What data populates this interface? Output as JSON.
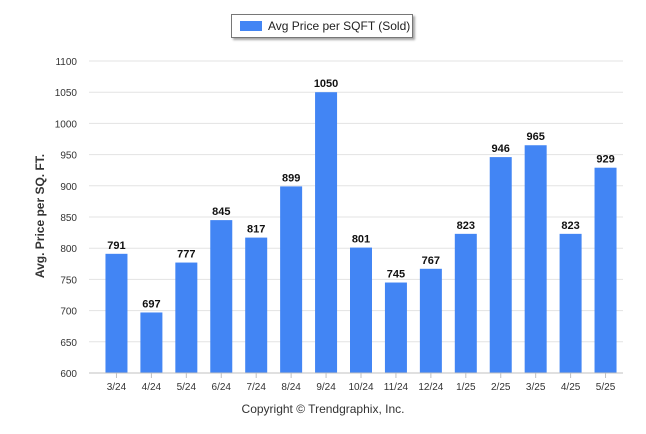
{
  "chart_data": {
    "type": "bar",
    "legend": "Avg Price per SQFT (Sold)",
    "ylabel": "Avg. Price per SQ. FT.",
    "xlabel": "",
    "categories": [
      "3/24",
      "4/24",
      "5/24",
      "6/24",
      "7/24",
      "8/24",
      "9/24",
      "10/24",
      "11/24",
      "12/24",
      "1/25",
      "2/25",
      "3/25",
      "4/25",
      "5/25"
    ],
    "values": [
      791,
      697,
      777,
      845,
      817,
      899,
      1050,
      801,
      745,
      767,
      823,
      946,
      965,
      823,
      929
    ],
    "ylim": [
      600,
      1100
    ],
    "yticks": [
      600,
      650,
      700,
      750,
      800,
      850,
      900,
      950,
      1000,
      1050,
      1100
    ],
    "grid": true,
    "legend_position": "top-center",
    "bar_color": "#4285f4"
  },
  "footer": {
    "copyright": "Copyright © Trendgraphix, Inc."
  }
}
